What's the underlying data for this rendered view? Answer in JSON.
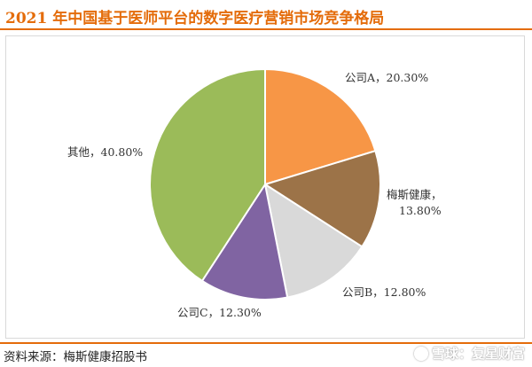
{
  "title": "2021 年中国基于医师平台的数字医疗营销市场竞争格局",
  "source": "资料来源：梅斯健康招股书",
  "watermark": "雪球：复星财富",
  "chart_data": {
    "type": "pie",
    "title": "2021 年中国基于医师平台的数字医疗营销市场竞争格局",
    "slices": [
      {
        "label": "公司A",
        "value": 20.3,
        "display": "公司A，20.30%",
        "color": "#f79646"
      },
      {
        "label": "梅斯健康",
        "value": 13.8,
        "display": "梅斯健康，13.80%",
        "color": "#9c7348"
      },
      {
        "label": "公司B",
        "value": 12.8,
        "display": "公司B，12.80%",
        "color": "#d9d9d9"
      },
      {
        "label": "公司C",
        "value": 12.3,
        "display": "公司C，12.30%",
        "color": "#8064a2"
      },
      {
        "label": "其他",
        "value": 40.8,
        "display": "其他，40.80%",
        "color": "#9bbb59"
      }
    ]
  }
}
